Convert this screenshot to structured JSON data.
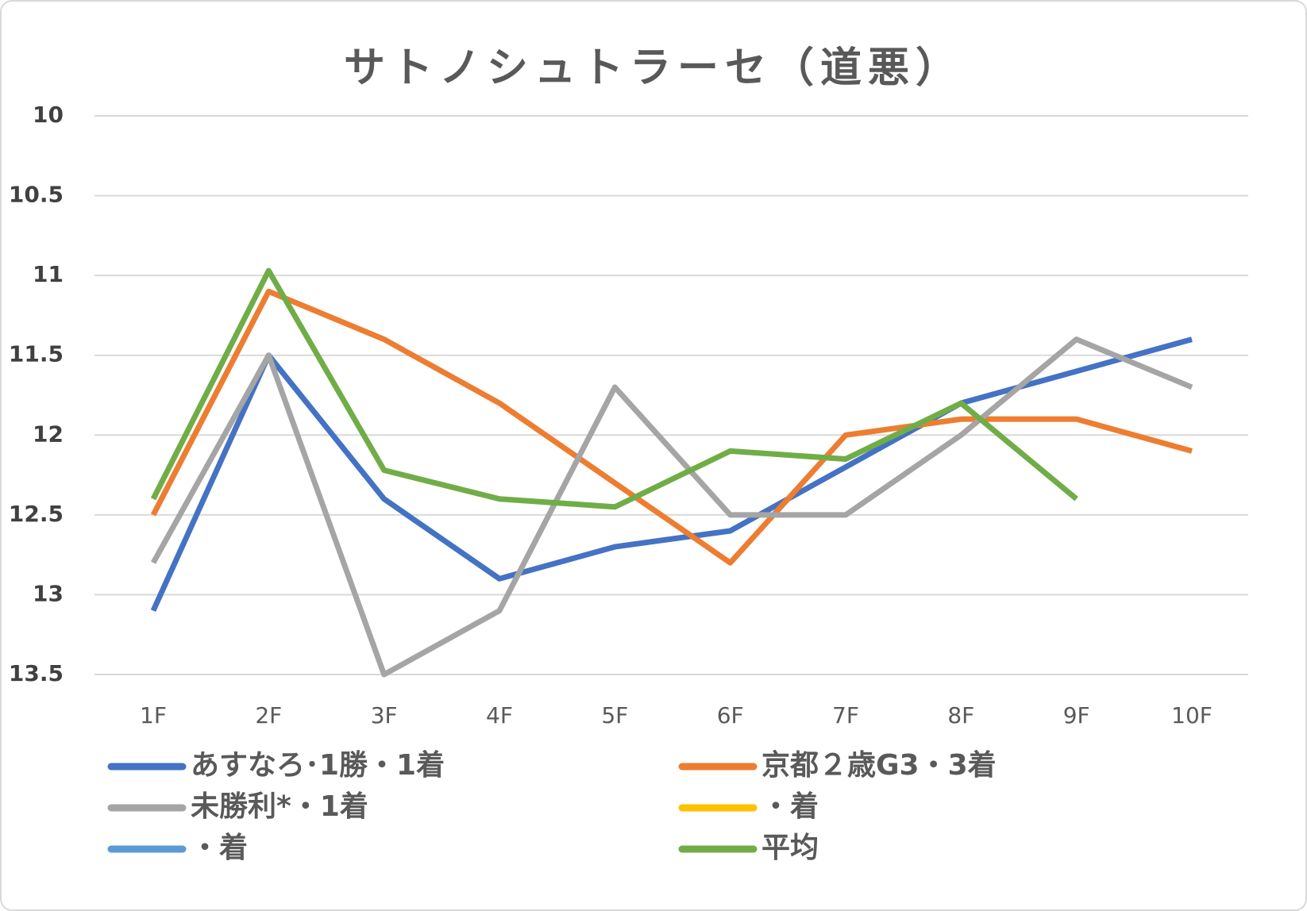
{
  "chart_data": {
    "type": "line",
    "title": "サトノシュトラーセ（道悪）",
    "categories": [
      "1F",
      "2F",
      "3F",
      "4F",
      "5F",
      "6F",
      "7F",
      "8F",
      "9F",
      "10F"
    ],
    "ylim": [
      10,
      13.5
    ],
    "yticks": [
      10,
      10.5,
      11,
      11.5,
      12,
      12.5,
      13,
      13.5
    ],
    "y_reversed": true,
    "grid": true,
    "legend": "bottom",
    "series": [
      {
        "name": "あすなろ･1勝・1着",
        "color": "#4472c4",
        "values": [
          13.1,
          11.5,
          12.4,
          12.9,
          12.7,
          12.6,
          12.2,
          11.8,
          11.6,
          11.4
        ]
      },
      {
        "name": "京都２歳G3・3着",
        "color": "#ed7d31",
        "values": [
          12.5,
          11.1,
          11.4,
          11.8,
          12.3,
          12.8,
          12.0,
          11.9,
          11.9,
          12.1
        ]
      },
      {
        "name": "未勝利*・1着",
        "color": "#a5a5a5",
        "values": [
          12.8,
          11.5,
          13.5,
          13.1,
          11.7,
          12.5,
          12.5,
          12.0,
          11.4,
          11.7
        ]
      },
      {
        "name": "・着",
        "color": "#ffc000",
        "values": [
          null,
          null,
          null,
          null,
          null,
          null,
          null,
          null,
          null,
          null
        ]
      },
      {
        "name": "・着",
        "color": "#5b9bd5",
        "values": [
          null,
          null,
          null,
          null,
          null,
          null,
          null,
          null,
          null,
          null
        ]
      },
      {
        "name": "平均",
        "color": "#70ad47",
        "values": [
          12.4,
          10.97,
          12.22,
          12.4,
          12.45,
          12.1,
          12.15,
          11.8,
          12.4,
          null
        ]
      }
    ]
  }
}
